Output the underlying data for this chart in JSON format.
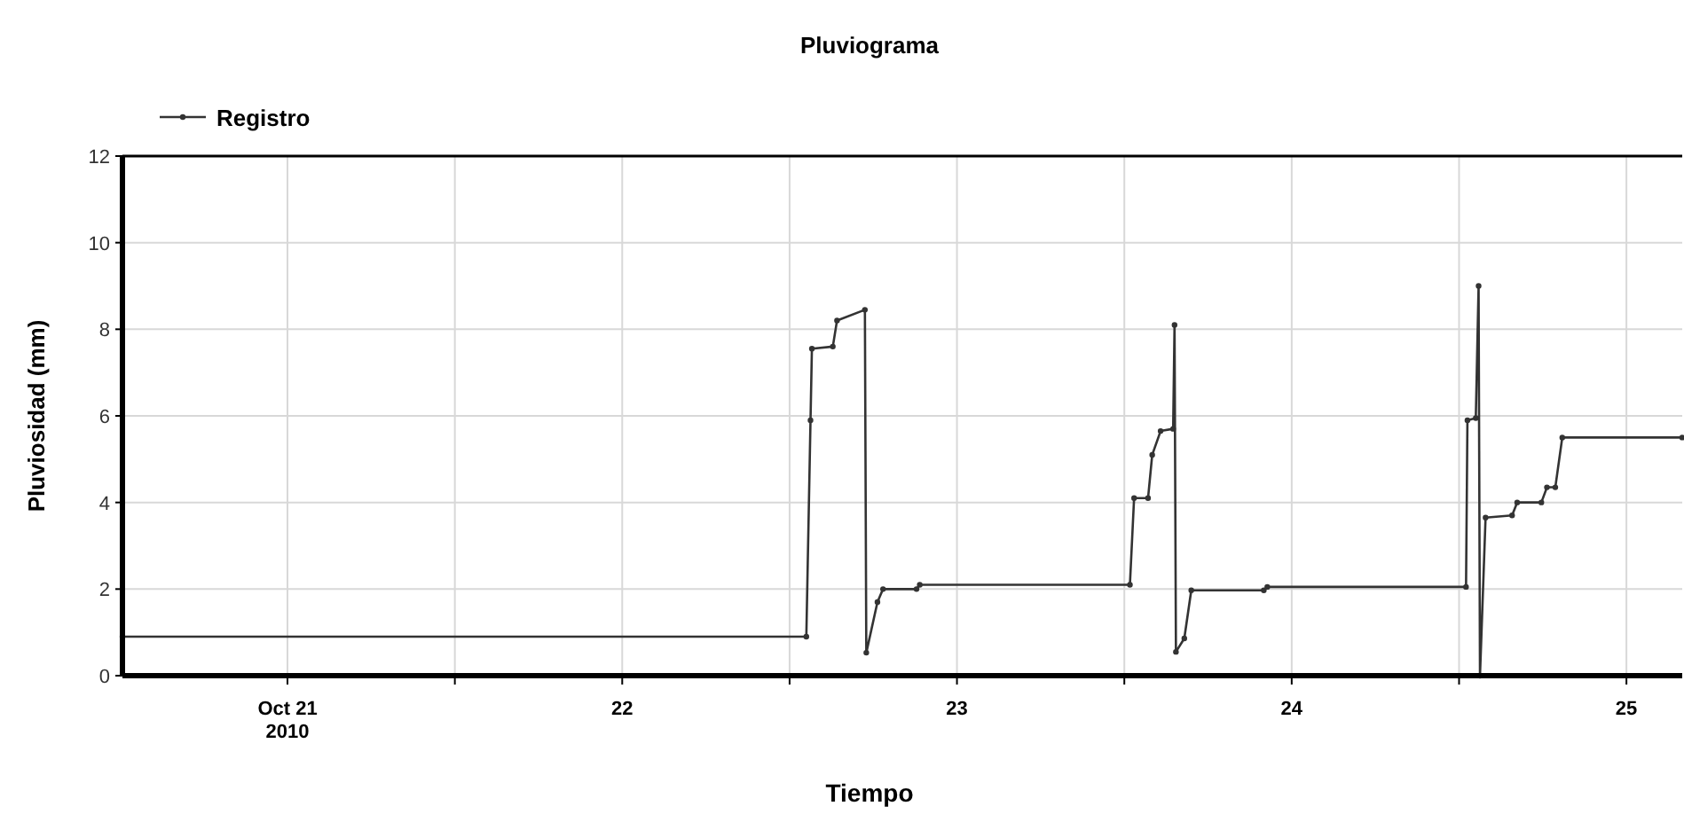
{
  "chart_data": {
    "type": "line",
    "title": "Pluviograma",
    "xlabel": "Tiempo",
    "ylabel": "Pluviosidad (mm)",
    "legend": "top left",
    "grid": true,
    "marker": "circle",
    "line_style": "solid",
    "xlim": [
      "2010-10-20T12:10",
      "2010-10-25T04:00"
    ],
    "xticks": [
      {
        "value": "2010-10-21T00:00",
        "label": "Oct 21\n2010"
      },
      {
        "value": "2010-10-21T12:00",
        "label": null
      },
      {
        "value": "2010-10-22T00:00",
        "label": "22"
      },
      {
        "value": "2010-10-22T12:00",
        "label": null
      },
      {
        "value": "2010-10-23T00:00",
        "label": "23"
      },
      {
        "value": "2010-10-23T12:00",
        "label": null
      },
      {
        "value": "2010-10-24T00:00",
        "label": "24"
      },
      {
        "value": "2010-10-24T12:00",
        "label": null
      },
      {
        "value": "2010-10-25T00:00",
        "label": "25"
      }
    ],
    "ylim": [
      0,
      12
    ],
    "yticks": [
      0,
      2,
      4,
      6,
      8,
      10,
      12
    ],
    "series": [
      {
        "name": "Registro",
        "color": "#333333",
        "x": [
          "2010-10-20T12:10",
          "2010-10-22T13:12",
          "2010-10-22T13:30",
          "2010-10-22T13:36",
          "2010-10-22T15:06",
          "2010-10-22T15:24",
          "2010-10-22T17:24",
          "2010-10-22T17:30",
          "2010-10-22T18:18",
          "2010-10-22T18:42",
          "2010-10-22T21:06",
          "2010-10-22T21:20",
          "2010-10-23T12:24",
          "2010-10-23T12:42",
          "2010-10-23T13:42",
          "2010-10-23T14:00",
          "2010-10-23T14:36",
          "2010-10-23T15:30",
          "2010-10-23T15:36",
          "2010-10-23T15:42",
          "2010-10-23T16:18",
          "2010-10-23T16:48",
          "2010-10-23T22:00",
          "2010-10-23T22:15",
          "2010-10-24T12:30",
          "2010-10-24T12:36",
          "2010-10-24T13:12",
          "2010-10-24T13:24",
          "2010-10-24T13:30",
          "2010-10-24T13:54",
          "2010-10-24T15:48",
          "2010-10-24T16:10",
          "2010-10-24T17:54",
          "2010-10-24T18:18",
          "2010-10-24T18:54",
          "2010-10-24T19:24",
          "2010-10-25T04:00"
        ],
        "values": [
          0.9,
          0.9,
          5.9,
          7.55,
          7.6,
          8.2,
          8.45,
          0.53,
          1.7,
          2.0,
          2.0,
          2.1,
          2.1,
          4.1,
          4.1,
          5.1,
          5.65,
          5.7,
          8.1,
          0.55,
          0.86,
          1.97,
          1.97,
          2.05,
          2.05,
          5.9,
          5.95,
          9.0,
          0,
          3.65,
          3.7,
          4.0,
          4.0,
          4.35,
          4.35,
          5.5,
          5.5
        ]
      }
    ]
  }
}
